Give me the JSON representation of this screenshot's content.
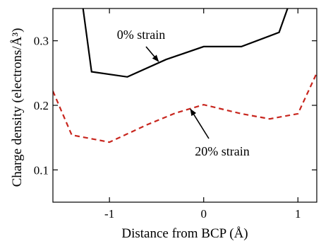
{
  "chart_data": {
    "type": "line",
    "xlabel": "Distance from BCP (Å)",
    "ylabel": "Charge density (electrons/Å³)",
    "xlim": [
      -1.6,
      1.2
    ],
    "ylim": [
      0.05,
      0.35
    ],
    "xticks": [
      -1,
      0,
      1
    ],
    "xtick_labels": [
      "-1",
      "0",
      "1"
    ],
    "yticks": [
      0.1,
      0.2,
      0.3
    ],
    "ytick_labels": [
      "0.1",
      "0.2",
      "0.3"
    ],
    "grid": false,
    "legend": "none",
    "series": [
      {
        "name": "0% strain",
        "color": "#000000",
        "style": "solid",
        "x": [
          -1.28,
          -1.19,
          -0.81,
          -0.4,
          0.0,
          0.4,
          0.8,
          0.89
        ],
        "y": [
          0.35,
          0.252,
          0.244,
          0.271,
          0.291,
          0.291,
          0.313,
          0.35
        ]
      },
      {
        "name": "20% strain",
        "color": "#c8261e",
        "style": "dashed",
        "x": [
          -1.6,
          -1.4,
          -1.0,
          -0.6,
          -0.3,
          0.0,
          0.4,
          0.7,
          1.0,
          1.2
        ],
        "y": [
          0.222,
          0.154,
          0.143,
          0.17,
          0.188,
          0.201,
          0.187,
          0.179,
          0.187,
          0.25
        ]
      }
    ],
    "annotations": [
      {
        "text": "0% strain",
        "series": 0,
        "arrow_to_x": -0.48,
        "arrow_to_y": 0.268
      },
      {
        "text": "20% strain",
        "series": 1,
        "arrow_to_x": -0.14,
        "arrow_to_y": 0.194
      }
    ]
  }
}
